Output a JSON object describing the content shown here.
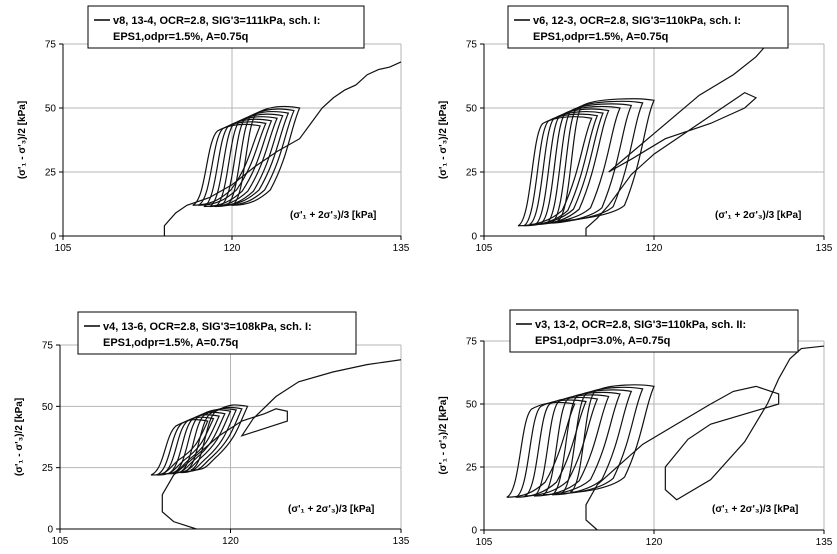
{
  "chart_data": [
    {
      "type": "line",
      "legend": [
        "v8, 13-4, OCR=2.8, SIG'3=111kPa, sch. I:",
        "EPS1,odpr=1.5%, A=0.75q"
      ],
      "xlabel": "(σ'₁ + 2σ'₃)/3   [kPa]",
      "ylabel": "(σ'₁ - σ'₃)/2   [kPa]",
      "xlim": [
        105,
        135
      ],
      "ylim": [
        0,
        75
      ],
      "xticks": [
        "105",
        "120",
        "135"
      ],
      "yticks": [
        "0",
        "25",
        "50",
        "75"
      ],
      "grid": true,
      "loops": [
        {
          "x0": 116.5,
          "y0": 12,
          "x1": 122.5,
          "y1": 43
        },
        {
          "x0": 117.0,
          "y0": 12,
          "x1": 123.0,
          "y1": 44
        },
        {
          "x0": 117.5,
          "y0": 11.5,
          "x1": 123.5,
          "y1": 45
        },
        {
          "x0": 118.0,
          "y0": 11.5,
          "x1": 124.0,
          "y1": 46
        },
        {
          "x0": 118.5,
          "y0": 11.5,
          "x1": 124.5,
          "y1": 47
        },
        {
          "x0": 119.0,
          "y0": 12,
          "x1": 125.0,
          "y1": 48
        },
        {
          "x0": 119.5,
          "y0": 12,
          "x1": 125.5,
          "y1": 49
        },
        {
          "x0": 120.0,
          "y0": 12,
          "x1": 126.0,
          "y1": 50
        }
      ],
      "path": [
        [
          114,
          0
        ],
        [
          114,
          4
        ],
        [
          115,
          9
        ],
        [
          116,
          12
        ],
        [
          118,
          15
        ],
        [
          120,
          20
        ],
        [
          122,
          27
        ],
        [
          124,
          33
        ],
        [
          126,
          38
        ],
        [
          127,
          44
        ],
        [
          128,
          50
        ],
        [
          129,
          54
        ],
        [
          130,
          57
        ],
        [
          131,
          59
        ],
        [
          132,
          63
        ],
        [
          133,
          65
        ],
        [
          134,
          66
        ],
        [
          135,
          68
        ]
      ]
    },
    {
      "type": "line",
      "legend": [
        "v6, 12-3, OCR=2.8, SIG'3=110kPa, sch. I:",
        "EPS1,odpr=1.5%, A=0.75q"
      ],
      "xlabel": "(σ'₁ + 2σ'₃)/3   [kPa]",
      "ylabel": "(σ'₁ - σ'₃)/2   [kPa]",
      "xlim": [
        105,
        135
      ],
      "ylim": [
        0,
        75
      ],
      "xticks": [
        "105",
        "120",
        "135"
      ],
      "yticks": [
        "0",
        "25",
        "50",
        "75"
      ],
      "grid": true,
      "loops": [
        {
          "x0": 108.0,
          "y0": 4,
          "x1": 114.5,
          "y1": 46
        },
        {
          "x0": 108.5,
          "y0": 4,
          "x1": 115.0,
          "y1": 47
        },
        {
          "x0": 109.0,
          "y0": 4.5,
          "x1": 115.5,
          "y1": 48
        },
        {
          "x0": 109.5,
          "y0": 4.5,
          "x1": 116.0,
          "y1": 49
        },
        {
          "x0": 110.0,
          "y0": 5,
          "x1": 117.0,
          "y1": 50
        },
        {
          "x0": 110.5,
          "y0": 5,
          "x1": 118.0,
          "y1": 51
        },
        {
          "x0": 111.0,
          "y0": 5.5,
          "x1": 119.0,
          "y1": 52
        },
        {
          "x0": 111.5,
          "y0": 6,
          "x1": 120.0,
          "y1": 53
        }
      ],
      "path": [
        [
          114,
          0
        ],
        [
          114,
          3
        ],
        [
          115,
          7
        ],
        [
          116,
          12
        ],
        [
          117,
          18
        ],
        [
          118,
          24
        ],
        [
          120,
          32
        ],
        [
          122,
          38
        ],
        [
          124,
          44
        ],
        [
          126,
          50
        ],
        [
          127,
          53
        ],
        [
          128,
          56
        ],
        [
          129,
          54
        ],
        [
          128,
          50
        ],
        [
          125,
          44
        ],
        [
          121,
          38
        ],
        [
          118,
          30
        ],
        [
          116,
          25
        ],
        [
          120,
          40
        ],
        [
          124,
          55
        ],
        [
          127,
          63
        ],
        [
          129,
          70
        ],
        [
          130,
          75
        ]
      ]
    },
    {
      "type": "line",
      "legend": [
        "v4, 13-6, OCR=2.8, SIG'3=108kPa, sch. I:",
        "EPS1,odpr=1.5%, A=0.75q"
      ],
      "xlabel": "(σ'₁ + 2σ'₃)/3   [kPa]",
      "ylabel": "(σ'₁ - σ'₃)/2   [kPa]",
      "xlim": [
        105,
        135
      ],
      "ylim": [
        0,
        75
      ],
      "xticks": [
        "105",
        "120",
        "135"
      ],
      "yticks": [
        "0",
        "25",
        "50",
        "75"
      ],
      "grid": true,
      "loops": [
        {
          "x0": 113.0,
          "y0": 22,
          "x1": 118.0,
          "y1": 44
        },
        {
          "x0": 113.5,
          "y0": 22,
          "x1": 118.5,
          "y1": 45
        },
        {
          "x0": 114.0,
          "y0": 22.5,
          "x1": 119.0,
          "y1": 46
        },
        {
          "x0": 114.5,
          "y0": 22.5,
          "x1": 119.5,
          "y1": 47
        },
        {
          "x0": 115.0,
          "y0": 23,
          "x1": 120.0,
          "y1": 48
        },
        {
          "x0": 115.5,
          "y0": 23,
          "x1": 120.5,
          "y1": 48.5
        },
        {
          "x0": 116.0,
          "y0": 23.5,
          "x1": 121.0,
          "y1": 49
        },
        {
          "x0": 116.5,
          "y0": 24,
          "x1": 121.5,
          "y1": 50
        }
      ],
      "path": [
        [
          117,
          0
        ],
        [
          115,
          3
        ],
        [
          114,
          7
        ],
        [
          114,
          14
        ],
        [
          115,
          22
        ],
        [
          117,
          30
        ],
        [
          119,
          38
        ],
        [
          121,
          44
        ],
        [
          123,
          47
        ],
        [
          124,
          49
        ],
        [
          125,
          48
        ],
        [
          125,
          44
        ],
        [
          123,
          41
        ],
        [
          121,
          38
        ],
        [
          122,
          45
        ],
        [
          124,
          54
        ],
        [
          126,
          60
        ],
        [
          129,
          64
        ],
        [
          132,
          67
        ],
        [
          135,
          69
        ]
      ]
    },
    {
      "type": "line",
      "legend": [
        "v3, 13-2, OCR=2.8, SIG'3=110kPa, sch. II:",
        "EPS1,odpr=3.0%, A=0.75q"
      ],
      "xlabel": "(σ'₁ + 2σ'₃)/3   [kPa]",
      "ylabel": "(σ'₁ - σ'₃)/2   [kPa]",
      "xlim": [
        105,
        135
      ],
      "ylim": [
        0,
        75
      ],
      "xticks": [
        "105",
        "120",
        "135"
      ],
      "yticks": [
        "0",
        "25",
        "50",
        "75"
      ],
      "grid": true,
      "loops": [
        {
          "x0": 107.0,
          "y0": 13,
          "x1": 113.0,
          "y1": 50
        },
        {
          "x0": 107.8,
          "y0": 13,
          "x1": 114.0,
          "y1": 51
        },
        {
          "x0": 108.6,
          "y0": 13.5,
          "x1": 115.0,
          "y1": 52
        },
        {
          "x0": 109.4,
          "y0": 13.5,
          "x1": 116.0,
          "y1": 53
        },
        {
          "x0": 110.2,
          "y0": 14,
          "x1": 117.0,
          "y1": 54
        },
        {
          "x0": 111.0,
          "y0": 14,
          "x1": 118.0,
          "y1": 55
        },
        {
          "x0": 111.8,
          "y0": 14.5,
          "x1": 119.0,
          "y1": 56
        },
        {
          "x0": 112.6,
          "y0": 15,
          "x1": 120.0,
          "y1": 57
        }
      ],
      "path": [
        [
          115,
          0
        ],
        [
          114,
          4
        ],
        [
          114,
          10
        ],
        [
          115,
          18
        ],
        [
          117,
          26
        ],
        [
          119,
          34
        ],
        [
          122,
          42
        ],
        [
          125,
          50
        ],
        [
          127,
          55
        ],
        [
          129,
          57
        ],
        [
          131,
          54
        ],
        [
          131,
          50
        ],
        [
          128,
          46
        ],
        [
          125,
          42
        ],
        [
          123,
          36
        ],
        [
          121,
          25
        ],
        [
          121,
          16
        ],
        [
          122,
          12
        ],
        [
          125,
          20
        ],
        [
          128,
          35
        ],
        [
          130,
          50
        ],
        [
          131,
          60
        ],
        [
          132,
          68
        ],
        [
          133,
          72
        ],
        [
          135,
          73
        ]
      ]
    }
  ]
}
